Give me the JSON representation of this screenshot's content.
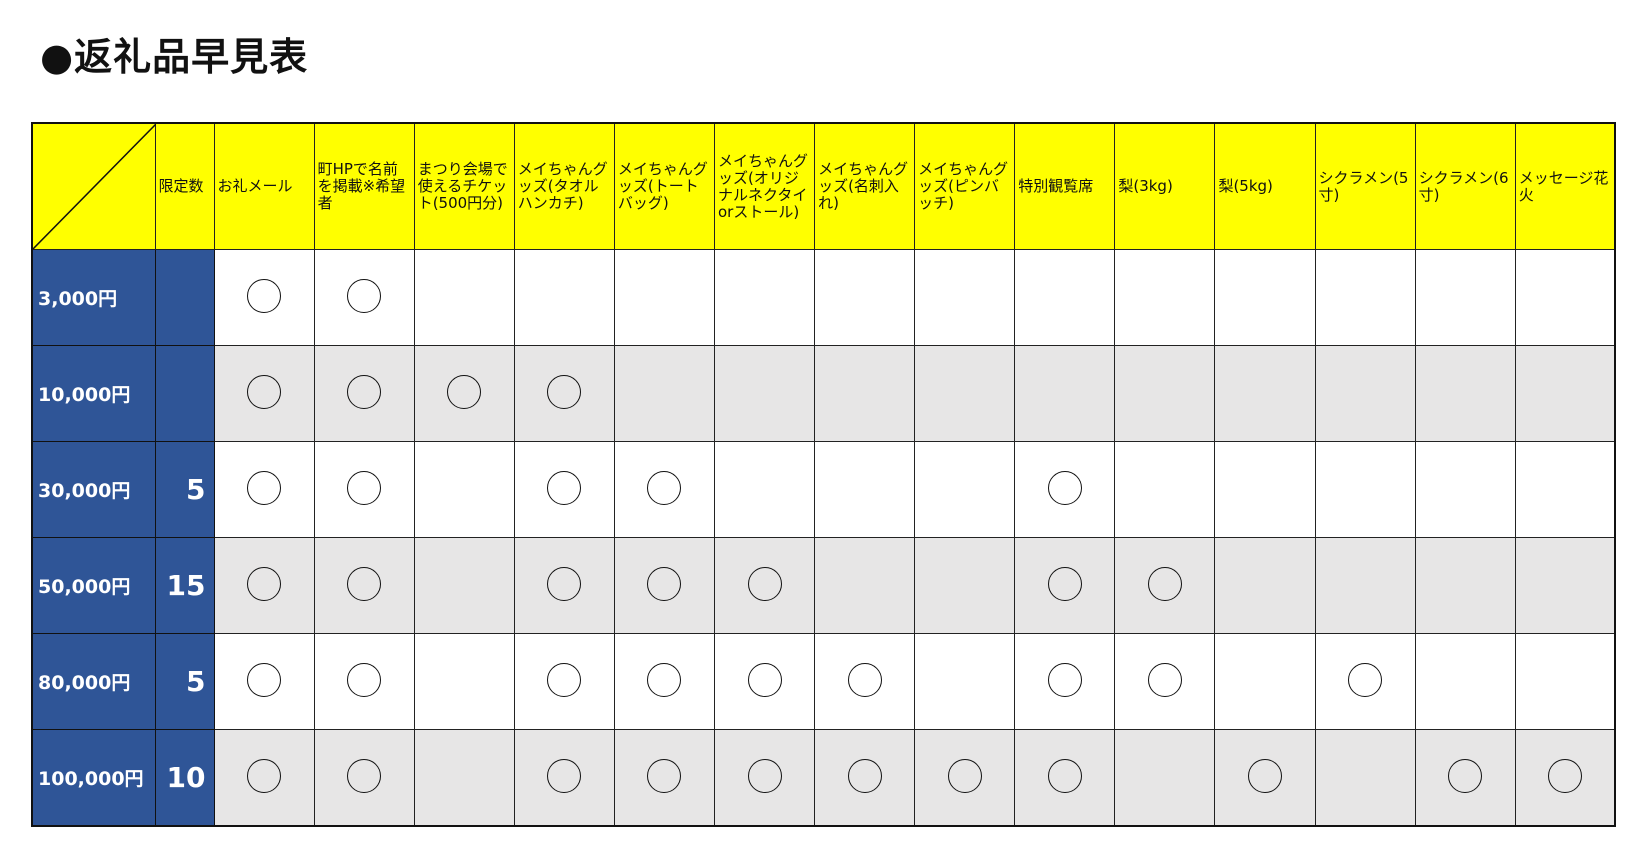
{
  "title": "●返礼品早見表",
  "header": {
    "limit_label": "限定数",
    "items": [
      "お礼メール",
      "町HPで名前を掲載※希望者",
      "まつり会場で使えるチケット(500円分)",
      "メイちゃんグッズ(タオルハンカチ)",
      "メイちゃんグッズ(トートバッグ)",
      "メイちゃんグッズ(オリジナルネクタイorストール)",
      "メイちゃんグッズ(名刺入れ)",
      "メイちゃんグッズ(ピンバッチ)",
      "特別観覧席",
      "梨(3kg)",
      "梨(5kg)",
      "シクラメン(5寸)",
      "シクラメン(6寸)",
      "メッセージ花火"
    ]
  },
  "mark_symbol": "circle",
  "colors": {
    "header_bg": "#ffff00",
    "amount_bg": "#2f5597",
    "alt_row_bg": "#e7e6e6"
  },
  "rows": [
    {
      "amount": "3,000円",
      "limit": "",
      "marks": [
        1,
        1,
        0,
        0,
        0,
        0,
        0,
        0,
        0,
        0,
        0,
        0,
        0,
        0
      ]
    },
    {
      "amount": "10,000円",
      "limit": "",
      "marks": [
        1,
        1,
        1,
        1,
        0,
        0,
        0,
        0,
        0,
        0,
        0,
        0,
        0,
        0
      ]
    },
    {
      "amount": "30,000円",
      "limit": "5",
      "marks": [
        1,
        1,
        0,
        1,
        1,
        0,
        0,
        0,
        1,
        0,
        0,
        0,
        0,
        0
      ]
    },
    {
      "amount": "50,000円",
      "limit": "15",
      "marks": [
        1,
        1,
        0,
        1,
        1,
        1,
        0,
        0,
        1,
        1,
        0,
        0,
        0,
        0
      ]
    },
    {
      "amount": "80,000円",
      "limit": "5",
      "marks": [
        1,
        1,
        0,
        1,
        1,
        1,
        1,
        0,
        1,
        1,
        0,
        1,
        0,
        0
      ]
    },
    {
      "amount": "100,000円",
      "limit": "10",
      "marks": [
        1,
        1,
        0,
        1,
        1,
        1,
        1,
        1,
        1,
        0,
        1,
        0,
        1,
        1
      ]
    }
  ]
}
